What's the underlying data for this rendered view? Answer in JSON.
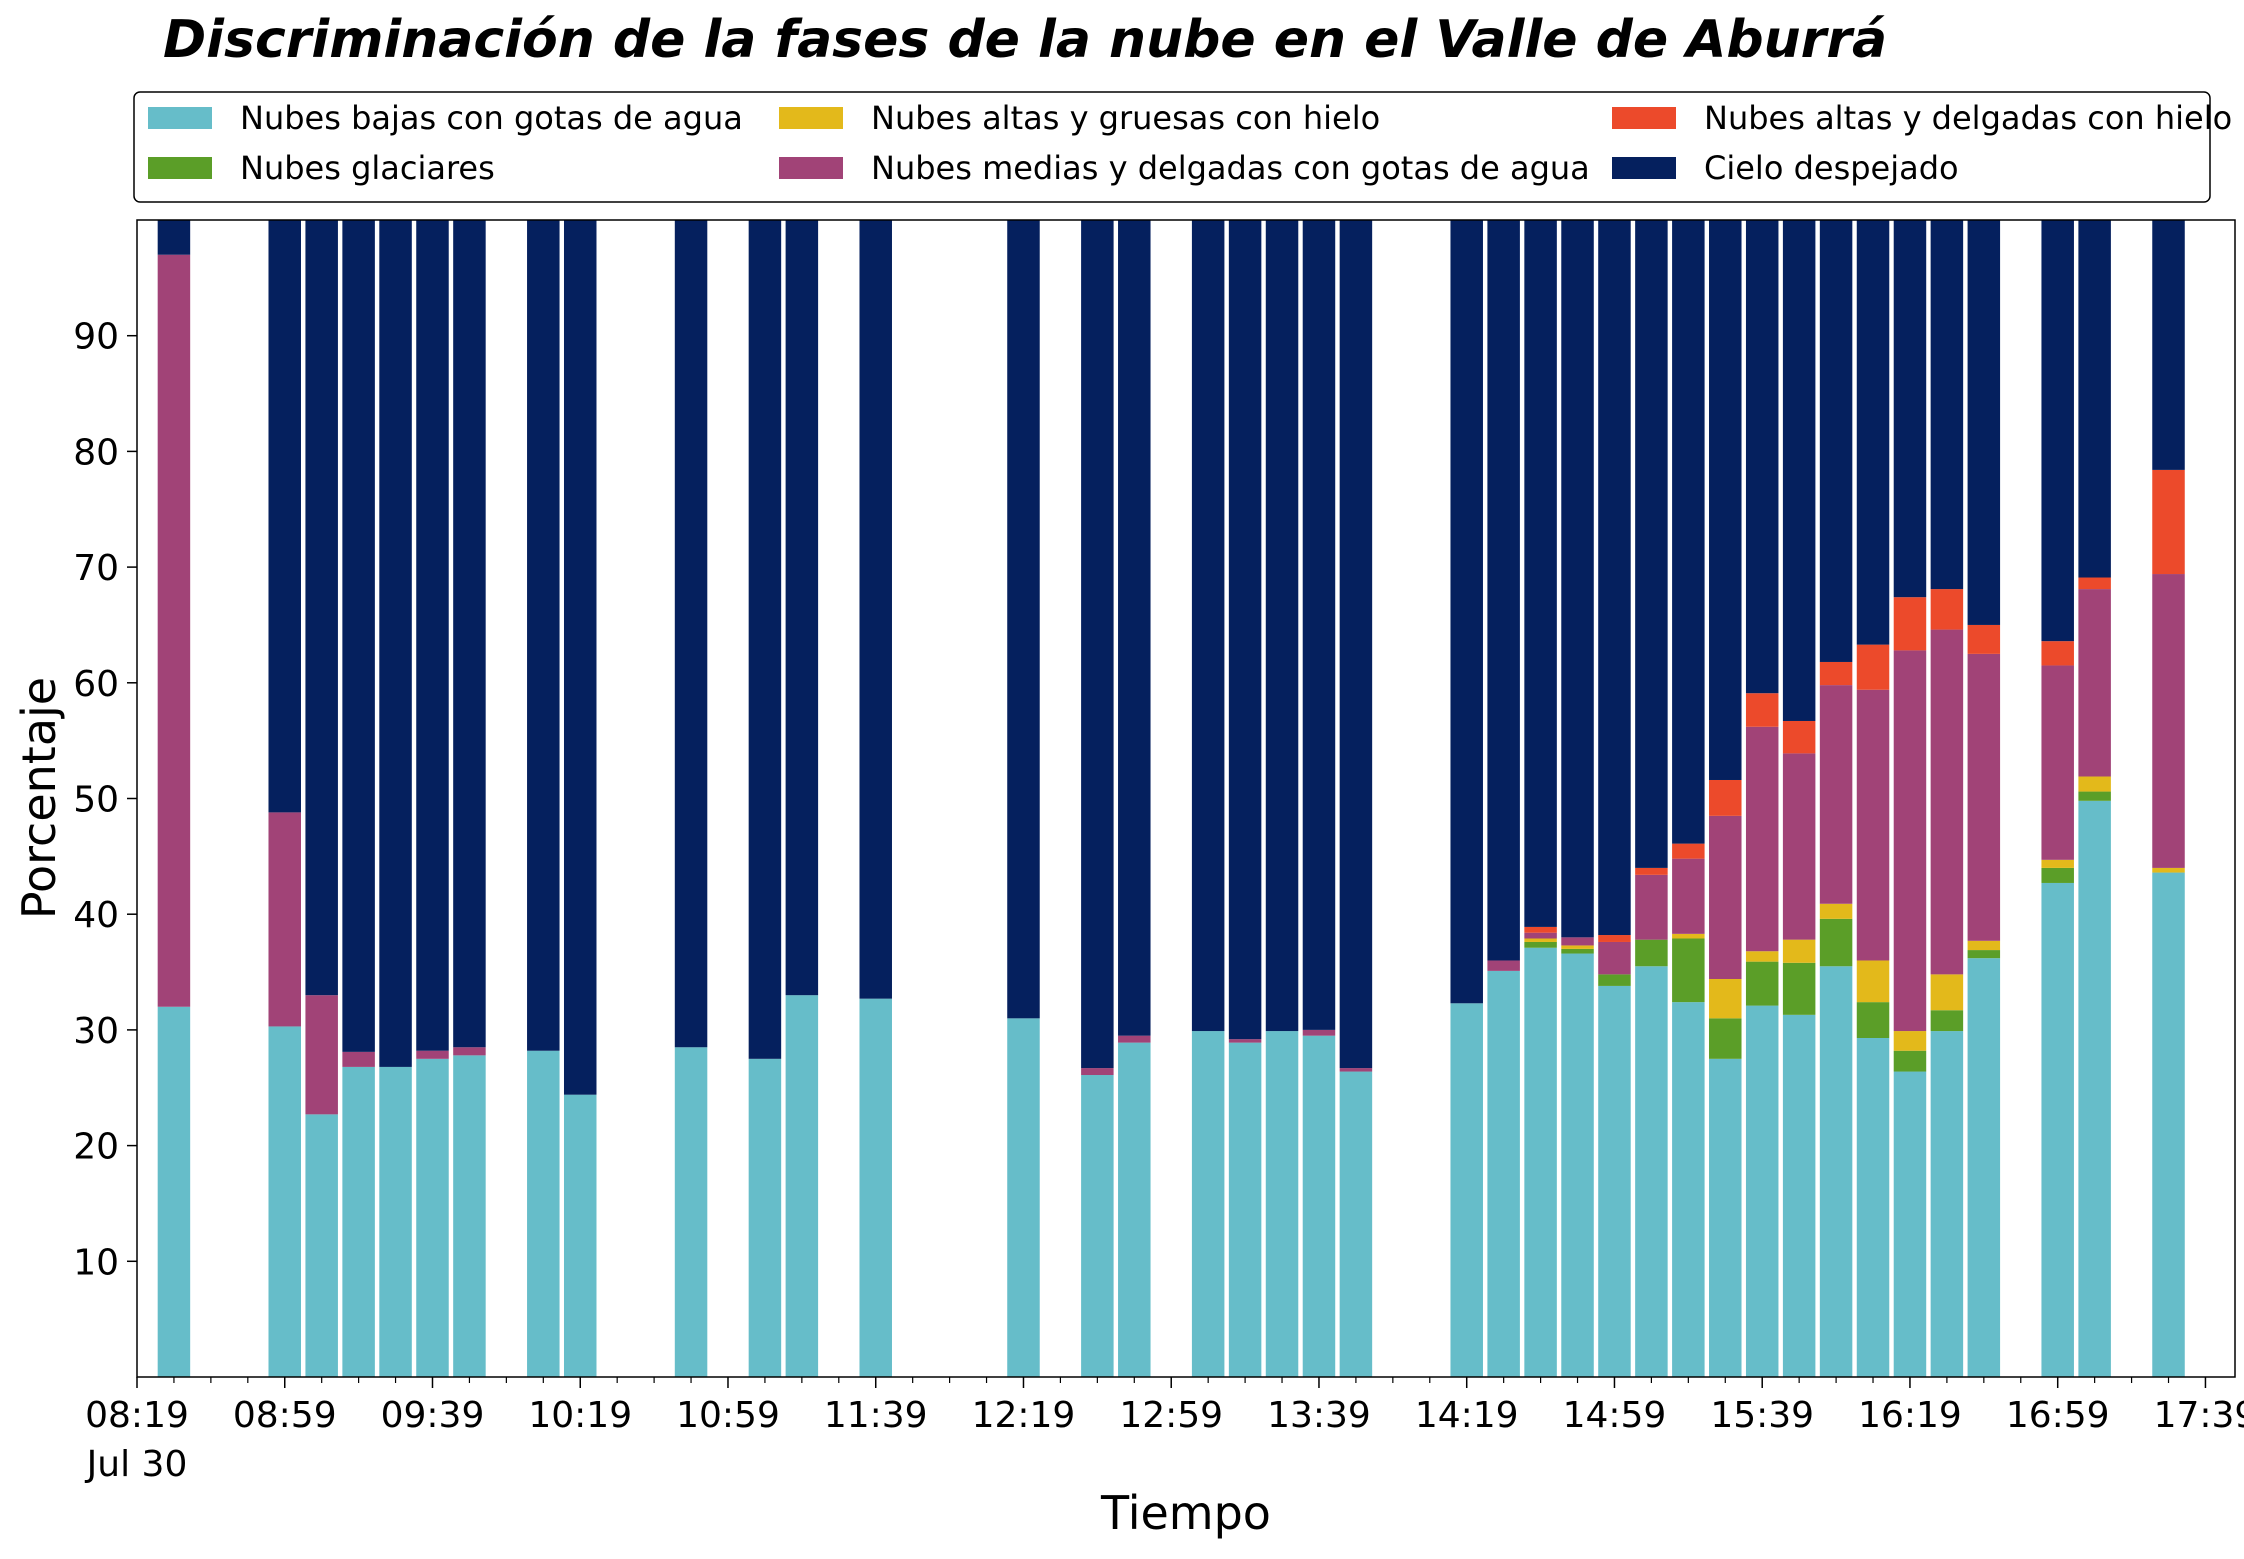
{
  "chart_data": {
    "type": "bar",
    "stacked": true,
    "title": "Discriminación de la fases de la nube en el Valle de Aburrá",
    "xlabel": "Tiempo",
    "ylabel": "Porcentaje",
    "ylim": [
      0,
      100
    ],
    "yticks": [
      10,
      20,
      30,
      40,
      50,
      60,
      70,
      80,
      90
    ],
    "x_start_minutes": 499,
    "x_end_minutes": 1067,
    "bar_step_minutes": 10,
    "xticks": [
      {
        "minutes": 499,
        "label": "08:19",
        "sublabel": "Jul 30"
      },
      {
        "minutes": 539,
        "label": "08:59"
      },
      {
        "minutes": 579,
        "label": "09:39"
      },
      {
        "minutes": 619,
        "label": "10:19"
      },
      {
        "minutes": 659,
        "label": "10:59"
      },
      {
        "minutes": 699,
        "label": "11:39"
      },
      {
        "minutes": 739,
        "label": "12:19"
      },
      {
        "minutes": 779,
        "label": "12:59"
      },
      {
        "minutes": 819,
        "label": "13:39"
      },
      {
        "minutes": 859,
        "label": "14:19"
      },
      {
        "minutes": 899,
        "label": "14:59"
      },
      {
        "minutes": 939,
        "label": "15:39"
      },
      {
        "minutes": 979,
        "label": "16:19"
      },
      {
        "minutes": 1019,
        "label": "16:59"
      },
      {
        "minutes": 1059,
        "label": "17:39"
      }
    ],
    "legend": {
      "position": "top",
      "columns": 3
    },
    "series": [
      {
        "name": "Nubes bajas con gotas de agua",
        "color": "#66bdc9"
      },
      {
        "name": "Nubes glaciares",
        "color": "#5b9e28"
      },
      {
        "name": "Nubes altas y gruesas con hielo",
        "color": "#e3b91b"
      },
      {
        "name": "Nubes medias y delgadas con gotas de agua",
        "color": "#a14377"
      },
      {
        "name": "Nubes altas y delgadas con hielo",
        "color": "#ec4a2b"
      },
      {
        "name": "Cielo despejado",
        "color": "#05205e"
      }
    ],
    "bars": [
      {
        "t": 509,
        "v": [
          32,
          0,
          0,
          65,
          0,
          3
        ]
      },
      {
        "t": 539,
        "v": [
          30.3,
          0,
          0,
          18.5,
          0,
          51.2
        ]
      },
      {
        "t": 549,
        "v": [
          22.7,
          0,
          0,
          10.3,
          0,
          67
        ]
      },
      {
        "t": 559,
        "v": [
          26.8,
          0,
          0,
          1.3,
          0,
          71.9
        ]
      },
      {
        "t": 569,
        "v": [
          26.8,
          0,
          0,
          0,
          0,
          73.2
        ]
      },
      {
        "t": 579,
        "v": [
          27.5,
          0,
          0,
          0.7,
          0,
          71.8
        ]
      },
      {
        "t": 589,
        "v": [
          27.8,
          0,
          0,
          0.7,
          0,
          71.5
        ]
      },
      {
        "t": 609,
        "v": [
          28.2,
          0,
          0,
          0,
          0,
          71.8
        ]
      },
      {
        "t": 619,
        "v": [
          24.4,
          0,
          0,
          0,
          0,
          75.6
        ]
      },
      {
        "t": 649,
        "v": [
          28.5,
          0,
          0,
          0,
          0,
          71.5
        ]
      },
      {
        "t": 669,
        "v": [
          27.5,
          0,
          0,
          0,
          0,
          72.5
        ]
      },
      {
        "t": 679,
        "v": [
          33,
          0,
          0,
          0,
          0,
          67
        ]
      },
      {
        "t": 699,
        "v": [
          32.7,
          0,
          0,
          0,
          0,
          67.3
        ]
      },
      {
        "t": 739,
        "v": [
          31,
          0,
          0,
          0,
          0,
          69
        ]
      },
      {
        "t": 759,
        "v": [
          26.1,
          0,
          0,
          0.6,
          0,
          73.3
        ]
      },
      {
        "t": 769,
        "v": [
          28.9,
          0,
          0,
          0.6,
          0,
          70.5
        ]
      },
      {
        "t": 789,
        "v": [
          29.9,
          0,
          0,
          0,
          0,
          70.1
        ]
      },
      {
        "t": 799,
        "v": [
          28.9,
          0,
          0,
          0.3,
          0,
          70.8
        ]
      },
      {
        "t": 809,
        "v": [
          29.9,
          0,
          0,
          0,
          0,
          70.1
        ]
      },
      {
        "t": 819,
        "v": [
          29.5,
          0,
          0,
          0.5,
          0,
          70
        ]
      },
      {
        "t": 829,
        "v": [
          26.4,
          0,
          0,
          0.3,
          0,
          73.3
        ]
      },
      {
        "t": 859,
        "v": [
          32.3,
          0,
          0,
          0,
          0,
          67.7
        ]
      },
      {
        "t": 869,
        "v": [
          35.1,
          0,
          0,
          0.9,
          0,
          64
        ]
      },
      {
        "t": 879,
        "v": [
          37.1,
          0.5,
          0.3,
          0.5,
          0.5,
          61.1
        ]
      },
      {
        "t": 889,
        "v": [
          36.6,
          0.4,
          0.3,
          0.7,
          0,
          62
        ]
      },
      {
        "t": 899,
        "v": [
          33.8,
          1.0,
          0,
          2.8,
          0.6,
          61.8
        ]
      },
      {
        "t": 909,
        "v": [
          35.5,
          2.3,
          0,
          5.6,
          0.6,
          56
        ]
      },
      {
        "t": 919,
        "v": [
          32.4,
          5.5,
          0.4,
          6.5,
          1.3,
          53.9
        ]
      },
      {
        "t": 929,
        "v": [
          27.5,
          3.5,
          3.4,
          14.1,
          3.1,
          48.4
        ]
      },
      {
        "t": 939,
        "v": [
          32.1,
          3.8,
          0.9,
          19.4,
          2.9,
          40.9
        ]
      },
      {
        "t": 949,
        "v": [
          31.3,
          4.5,
          2.0,
          16.1,
          2.8,
          43.3
        ]
      },
      {
        "t": 959,
        "v": [
          35.5,
          4.1,
          1.3,
          18.9,
          2.0,
          38.2
        ]
      },
      {
        "t": 969,
        "v": [
          29.3,
          3.1,
          3.6,
          23.4,
          3.9,
          36.7
        ]
      },
      {
        "t": 979,
        "v": [
          26.4,
          1.8,
          1.7,
          32.9,
          4.6,
          32.6
        ]
      },
      {
        "t": 989,
        "v": [
          29.9,
          1.8,
          3.1,
          29.8,
          3.5,
          31.9
        ]
      },
      {
        "t": 999,
        "v": [
          36.2,
          0.7,
          0.8,
          24.8,
          2.5,
          35
        ]
      },
      {
        "t": 1019,
        "v": [
          42.7,
          1.3,
          0.7,
          16.8,
          2.1,
          36.4
        ]
      },
      {
        "t": 1029,
        "v": [
          49.8,
          0.8,
          1.3,
          16.2,
          1.0,
          30.9
        ]
      },
      {
        "t": 1049,
        "v": [
          43.6,
          0,
          0.4,
          25.4,
          9.0,
          21.6
        ]
      }
    ]
  }
}
